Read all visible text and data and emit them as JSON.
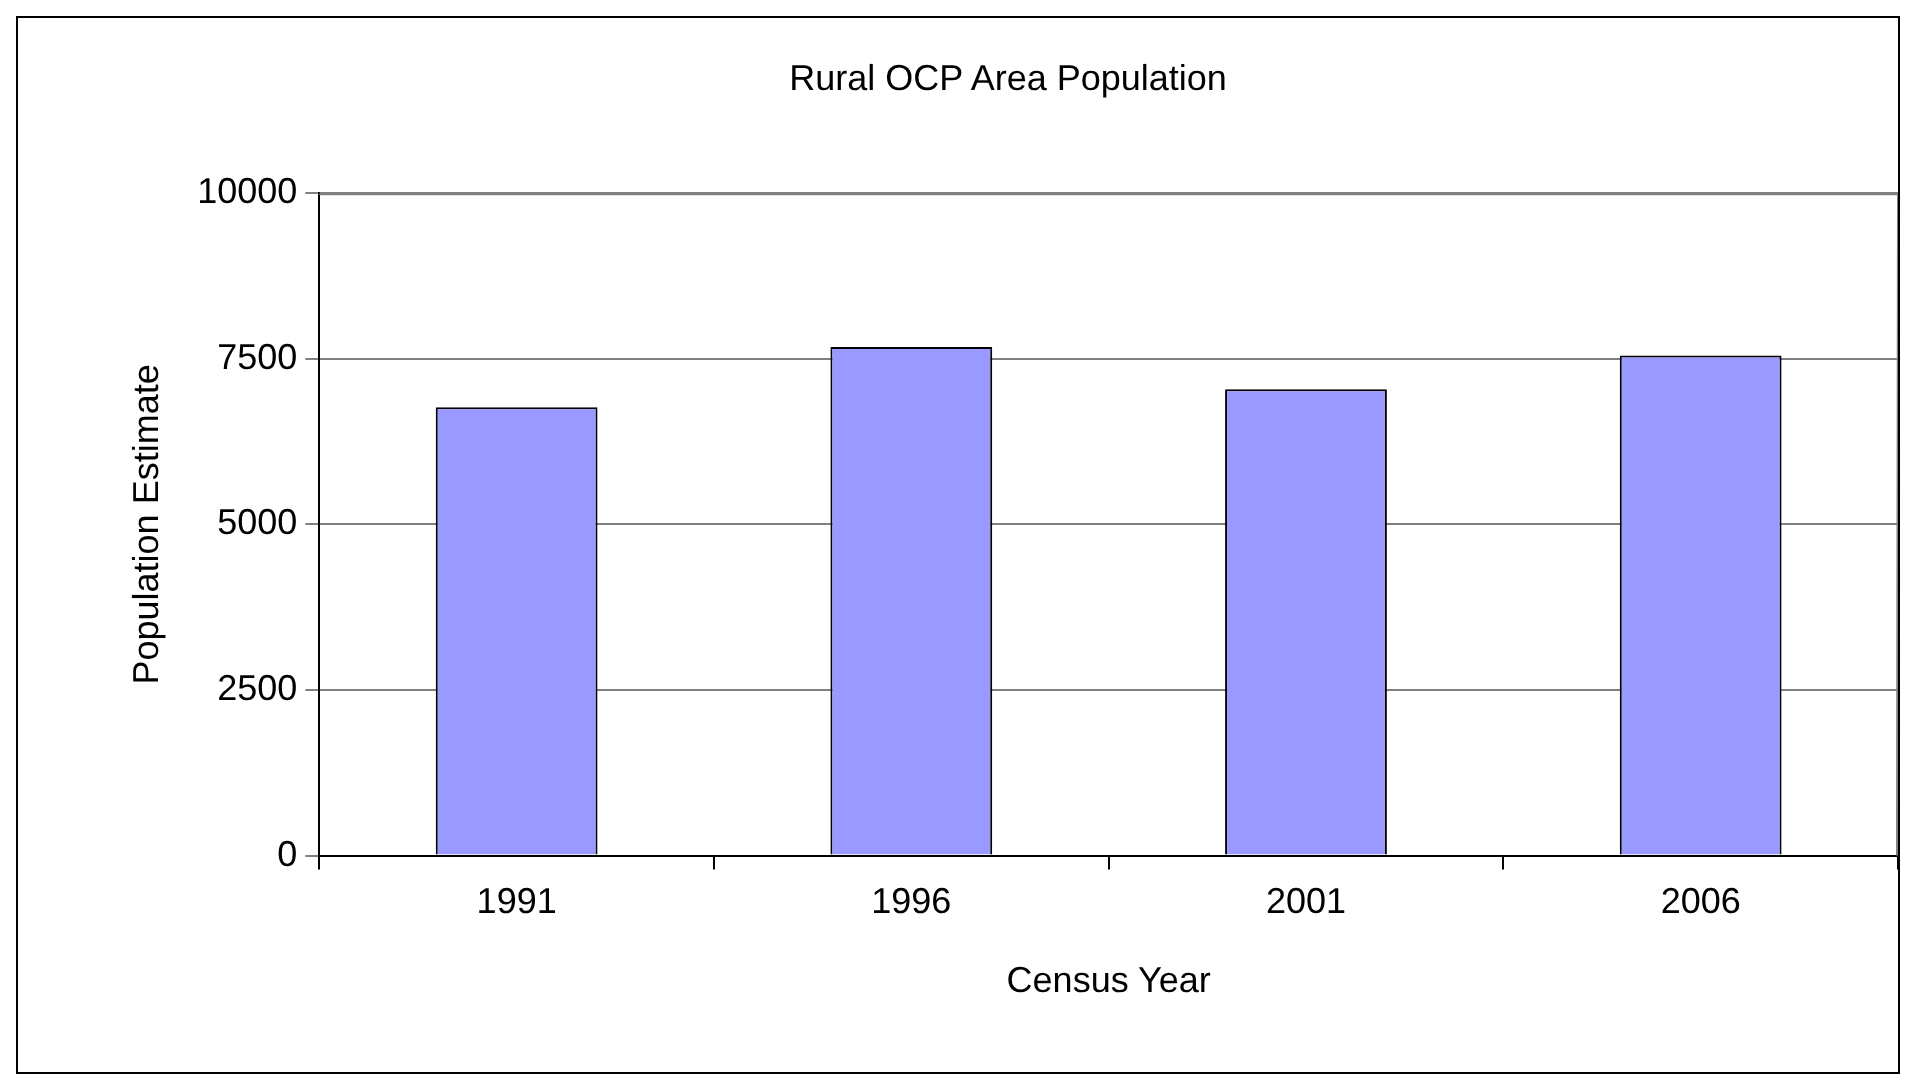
{
  "chart_data": {
    "type": "bar",
    "title": "Rural OCP Area Population",
    "xlabel": "Census Year",
    "ylabel": "Population Estimate",
    "categories": [
      "1991",
      "1996",
      "2001",
      "2006"
    ],
    "series": [
      {
        "color": "#9999ff",
        "values": [
          6770,
          7680,
          7040,
          7550
        ]
      }
    ],
    "ylim": [
      0,
      10000
    ],
    "yticks": [
      0,
      2500,
      5000,
      7500,
      10000
    ],
    "grid": "y",
    "legend": false
  }
}
